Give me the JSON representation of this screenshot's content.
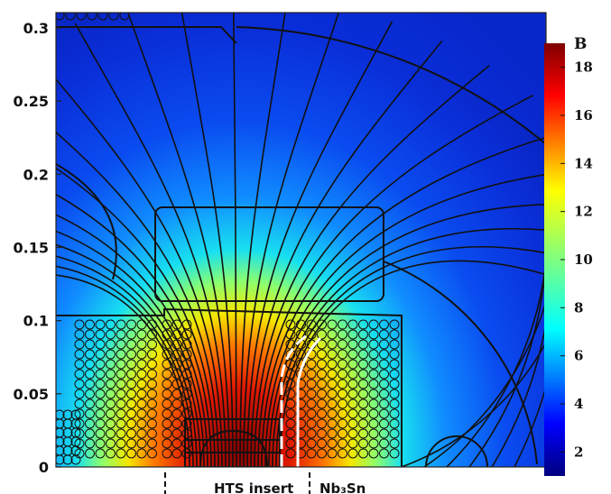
{
  "chart_data": {
    "type": "heatmap",
    "title": "",
    "xlabel": "",
    "ylabel": "",
    "y_ticks": [
      0,
      0.05,
      0.1,
      0.15,
      0.2,
      0.25,
      0.3
    ],
    "y_tick_labels": [
      "0",
      "0.05",
      "0.1",
      "0.15",
      "0.2",
      "0.25",
      "0.3"
    ],
    "ylim": [
      0,
      0.31
    ],
    "colorbar": {
      "title": "B",
      "ticks": [
        2,
        4,
        6,
        8,
        10,
        12,
        14,
        16,
        18
      ],
      "tick_labels": [
        "2",
        "4",
        "6",
        "8",
        "10",
        "12",
        "14",
        "16",
        "18"
      ],
      "range": [
        1,
        19
      ],
      "colormap": "jet"
    },
    "annotations": [
      {
        "text": "HTS insert",
        "target": "HTS insert region"
      },
      {
        "text": "Nb₃Sn",
        "target": "Nb3Sn coil region"
      }
    ],
    "peak_field": 18.5,
    "grid": false
  },
  "colors": {
    "jet_low": "#00007f",
    "jet_mid": "#7fff7f",
    "jet_high": "#7f0000",
    "contour": "#111111",
    "hts_boundary": "#ffffff"
  }
}
